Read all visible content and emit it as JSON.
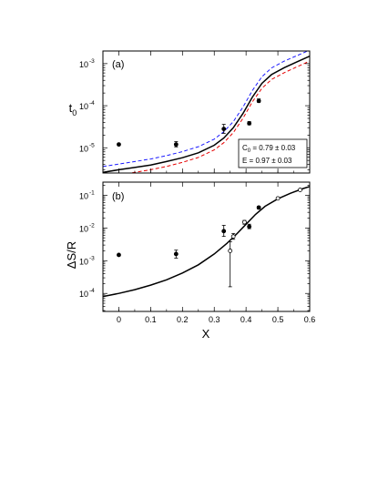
{
  "chart_data": [
    {
      "type": "line",
      "panel": "(a)",
      "ylabel": "t",
      "ylabel_sub": "0",
      "yscale": "log",
      "xlim": [
        -0.05,
        0.6
      ],
      "ylim_exp": [
        -5.6,
        -2.7
      ],
      "x_ticks": [
        0,
        0.1,
        0.2,
        0.3,
        0.4,
        0.5,
        0.6
      ],
      "y_tick_exponents": [
        -5,
        -4,
        -3
      ],
      "y_tick_base": "10",
      "annotation": {
        "c0_prefix": "C",
        "c0_sub": "0",
        "c0_value": " = 0.79 ± 0.03",
        "e_text": "E = 0.97 ± 0.03"
      },
      "series": [
        {
          "style": "solid",
          "color": "#000000",
          "x": [
            -0.05,
            0.0,
            0.05,
            0.1,
            0.15,
            0.2,
            0.25,
            0.3,
            0.33,
            0.36,
            0.39,
            0.42,
            0.45,
            0.48,
            0.52,
            0.56,
            0.6
          ],
          "y": [
            2.6e-06,
            3e-06,
            3.4e-06,
            3.9e-06,
            4.7e-06,
            5.8e-06,
            7.6e-06,
            1.15e-05,
            1.7e-05,
            3e-05,
            6.5e-05,
            0.00016,
            0.00034,
            0.00055,
            0.0008,
            0.0011,
            0.0015
          ]
        },
        {
          "style": "dashed",
          "color": "#1a1aff",
          "x": [
            -0.05,
            0.0,
            0.05,
            0.1,
            0.15,
            0.2,
            0.25,
            0.3,
            0.33,
            0.36,
            0.39,
            0.42,
            0.45,
            0.48,
            0.52,
            0.56,
            0.6
          ],
          "y": [
            3.6e-06,
            4.1e-06,
            4.7e-06,
            5.4e-06,
            6.5e-06,
            8.1e-06,
            1.06e-05,
            1.6e-05,
            2.4e-05,
            4.2e-05,
            9.2e-05,
            0.00023,
            0.00049,
            0.00079,
            0.00115,
            0.00155,
            0.0021
          ]
        },
        {
          "style": "dashed",
          "color": "#e60000",
          "x": [
            -0.05,
            0.0,
            0.05,
            0.1,
            0.15,
            0.2,
            0.25,
            0.3,
            0.33,
            0.36,
            0.39,
            0.42,
            0.45,
            0.48,
            0.52,
            0.56,
            0.6
          ],
          "y": [
            2e-06,
            2.3e-06,
            2.6e-06,
            3e-06,
            3.6e-06,
            4.5e-06,
            5.9e-06,
            8.9e-06,
            1.32e-05,
            2.3e-05,
            5e-05,
            0.000124,
            0.00026,
            0.00042,
            0.00061,
            0.00084,
            0.00115
          ]
        }
      ],
      "points": [
        {
          "x": 0.0,
          "y": 1.2e-05,
          "lo": 1.2e-05,
          "hi": 1.2e-05,
          "fill": true
        },
        {
          "x": 0.18,
          "y": 1.2e-05,
          "lo": 1.05e-05,
          "hi": 1.4e-05,
          "fill": true
        },
        {
          "x": 0.33,
          "y": 2.8e-05,
          "lo": 2.2e-05,
          "hi": 3.6e-05,
          "fill": true
        },
        {
          "x": 0.41,
          "y": 3.8e-05,
          "lo": 3.5e-05,
          "hi": 4.2e-05,
          "fill": true
        },
        {
          "x": 0.44,
          "y": 0.00013,
          "lo": 0.00012,
          "hi": 0.000145,
          "fill": true
        }
      ]
    },
    {
      "type": "scatter",
      "panel": "(b)",
      "ylabel": "ΔS/R",
      "xlabel": "X",
      "yscale": "log",
      "xlim": [
        -0.05,
        0.6
      ],
      "ylim_exp": [
        -4.55,
        -0.6
      ],
      "x_ticks": [
        0,
        0.1,
        0.2,
        0.3,
        0.4,
        0.5,
        0.6
      ],
      "x_tick_labels": [
        "0",
        "0.1",
        "0.2",
        "0.3",
        "0.4",
        "0.5",
        "0.6"
      ],
      "y_tick_exponents": [
        -4,
        -3,
        -2,
        -1
      ],
      "y_tick_base": "10",
      "series": [
        {
          "style": "solid",
          "color": "#000000",
          "x": [
            -0.05,
            0.0,
            0.05,
            0.1,
            0.15,
            0.2,
            0.25,
            0.3,
            0.34,
            0.37,
            0.4,
            0.43,
            0.46,
            0.5,
            0.54,
            0.58,
            0.6
          ],
          "y": [
            8e-05,
            0.0001,
            0.00013,
            0.00018,
            0.00026,
            0.00042,
            0.00075,
            0.0016,
            0.0034,
            0.0065,
            0.013,
            0.026,
            0.046,
            0.078,
            0.115,
            0.16,
            0.185
          ]
        }
      ],
      "points": [
        {
          "x": 0.0,
          "y": 0.0015,
          "lo": 0.0014,
          "hi": 0.0016,
          "fill": true
        },
        {
          "x": 0.18,
          "y": 0.0016,
          "lo": 0.0012,
          "hi": 0.0021,
          "fill": true
        },
        {
          "x": 0.33,
          "y": 0.008,
          "lo": 0.0055,
          "hi": 0.012,
          "fill": true
        },
        {
          "x": 0.35,
          "y": 0.002,
          "lo": 0.00016,
          "hi": 0.0038,
          "fill": false
        },
        {
          "x": 0.36,
          "y": 0.0055,
          "lo": 0.0045,
          "hi": 0.0068,
          "fill": false
        },
        {
          "x": 0.395,
          "y": 0.015,
          "lo": 0.013,
          "hi": 0.017,
          "fill": false
        },
        {
          "x": 0.41,
          "y": 0.011,
          "lo": 0.0095,
          "hi": 0.013,
          "fill": true
        },
        {
          "x": 0.44,
          "y": 0.042,
          "lo": 0.038,
          "hi": 0.046,
          "fill": true
        },
        {
          "x": 0.5,
          "y": 0.08,
          "lo": 0.08,
          "hi": 0.08,
          "fill": false
        },
        {
          "x": 0.57,
          "y": 0.145,
          "lo": 0.145,
          "hi": 0.145,
          "fill": false
        }
      ]
    }
  ]
}
